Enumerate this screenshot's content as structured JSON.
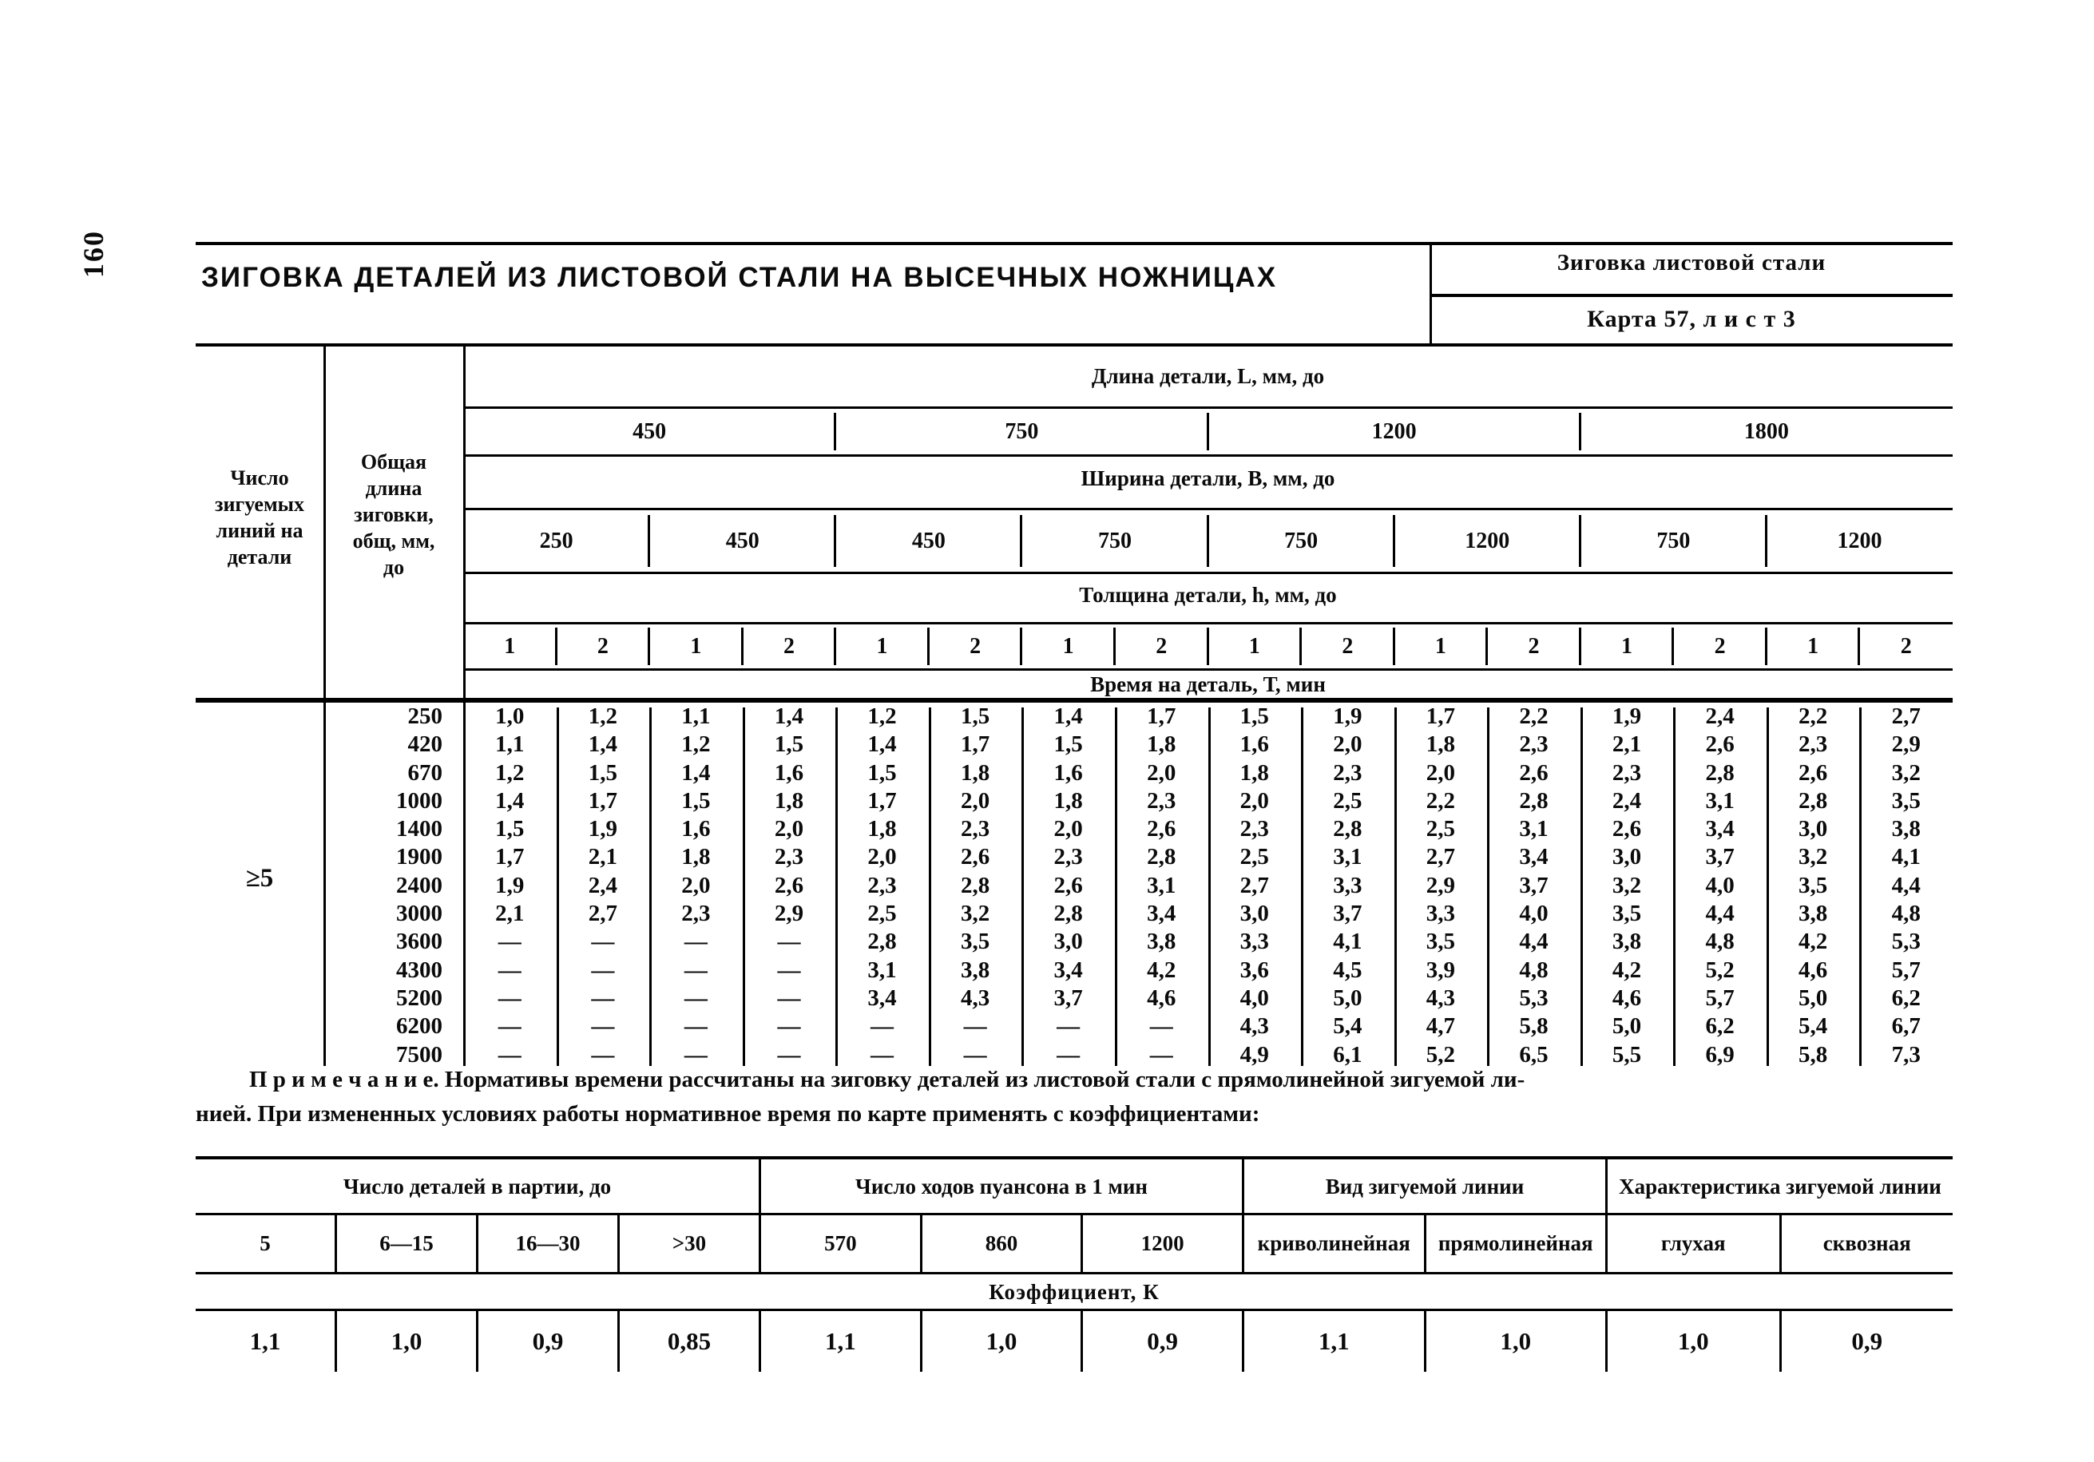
{
  "page": {
    "number": "160"
  },
  "header": {
    "title": "ЗИГОВКА ДЕТАЛЕЙ ИЗ ЛИСТОВОЙ СТАЛИ НА ВЫСЕЧНЫХ НОЖНИЦАХ",
    "topic": "Зиговка листовой стали",
    "card": "Карта 57, л и с т 3"
  },
  "main_table": {
    "stub1_label": "Число\nзигуемых\nлиний на\nдетали",
    "stub2_label": "Общая\nдлина\nзиговки,\nобщ, мм,\nдо",
    "stub_value": "≥5",
    "length_label": "Длина детали, L, мм, до",
    "length_values": [
      "450",
      "750",
      "1200",
      "1800"
    ],
    "width_label": "Ширина детали, В, мм, до",
    "width_values": [
      "250",
      "450",
      "450",
      "750",
      "750",
      "1200",
      "750",
      "1200"
    ],
    "thickness_label": "Толщина детали, h, мм, до",
    "thickness_values": [
      "1",
      "2",
      "1",
      "2",
      "1",
      "2",
      "1",
      "2",
      "1",
      "2",
      "1",
      "2",
      "1",
      "2",
      "1",
      "2"
    ],
    "time_label": "Время на деталь, Т, мин",
    "rows": [
      {
        "length": "250",
        "values": [
          "1,0",
          "1,2",
          "1,1",
          "1,4",
          "1,2",
          "1,5",
          "1,4",
          "1,7",
          "1,5",
          "1,9",
          "1,7",
          "2,2",
          "1,9",
          "2,4",
          "2,2",
          "2,7"
        ]
      },
      {
        "length": "420",
        "values": [
          "1,1",
          "1,4",
          "1,2",
          "1,5",
          "1,4",
          "1,7",
          "1,5",
          "1,8",
          "1,6",
          "2,0",
          "1,8",
          "2,3",
          "2,1",
          "2,6",
          "2,3",
          "2,9"
        ]
      },
      {
        "length": "670",
        "values": [
          "1,2",
          "1,5",
          "1,4",
          "1,6",
          "1,5",
          "1,8",
          "1,6",
          "2,0",
          "1,8",
          "2,3",
          "2,0",
          "2,6",
          "2,3",
          "2,8",
          "2,6",
          "3,2"
        ]
      },
      {
        "length": "1000",
        "values": [
          "1,4",
          "1,7",
          "1,5",
          "1,8",
          "1,7",
          "2,0",
          "1,8",
          "2,3",
          "2,0",
          "2,5",
          "2,2",
          "2,8",
          "2,4",
          "3,1",
          "2,8",
          "3,5"
        ]
      },
      {
        "length": "1400",
        "values": [
          "1,5",
          "1,9",
          "1,6",
          "2,0",
          "1,8",
          "2,3",
          "2,0",
          "2,6",
          "2,3",
          "2,8",
          "2,5",
          "3,1",
          "2,6",
          "3,4",
          "3,0",
          "3,8"
        ]
      },
      {
        "length": "1900",
        "values": [
          "1,7",
          "2,1",
          "1,8",
          "2,3",
          "2,0",
          "2,6",
          "2,3",
          "2,8",
          "2,5",
          "3,1",
          "2,7",
          "3,4",
          "3,0",
          "3,7",
          "3,2",
          "4,1"
        ]
      },
      {
        "length": "2400",
        "values": [
          "1,9",
          "2,4",
          "2,0",
          "2,6",
          "2,3",
          "2,8",
          "2,6",
          "3,1",
          "2,7",
          "3,3",
          "2,9",
          "3,7",
          "3,2",
          "4,0",
          "3,5",
          "4,4"
        ]
      },
      {
        "length": "3000",
        "values": [
          "2,1",
          "2,7",
          "2,3",
          "2,9",
          "2,5",
          "3,2",
          "2,8",
          "3,4",
          "3,0",
          "3,7",
          "3,3",
          "4,0",
          "3,5",
          "4,4",
          "3,8",
          "4,8"
        ]
      },
      {
        "length": "3600",
        "values": [
          "—",
          "—",
          "—",
          "—",
          "2,8",
          "3,5",
          "3,0",
          "3,8",
          "3,3",
          "4,1",
          "3,5",
          "4,4",
          "3,8",
          "4,8",
          "4,2",
          "5,3"
        ]
      },
      {
        "length": "4300",
        "values": [
          "—",
          "—",
          "—",
          "—",
          "3,1",
          "3,8",
          "3,4",
          "4,2",
          "3,6",
          "4,5",
          "3,9",
          "4,8",
          "4,2",
          "5,2",
          "4,6",
          "5,7"
        ]
      },
      {
        "length": "5200",
        "values": [
          "—",
          "—",
          "—",
          "—",
          "3,4",
          "4,3",
          "3,7",
          "4,6",
          "4,0",
          "5,0",
          "4,3",
          "5,3",
          "4,6",
          "5,7",
          "5,0",
          "6,2"
        ]
      },
      {
        "length": "6200",
        "values": [
          "—",
          "—",
          "—",
          "—",
          "—",
          "—",
          "—",
          "—",
          "4,3",
          "5,4",
          "4,7",
          "5,8",
          "5,0",
          "6,2",
          "5,4",
          "6,7"
        ]
      },
      {
        "length": "7500",
        "values": [
          "—",
          "—",
          "—",
          "—",
          "—",
          "—",
          "—",
          "—",
          "4,9",
          "6,1",
          "5,2",
          "6,5",
          "5,5",
          "6,9",
          "5,8",
          "7,3"
        ]
      }
    ]
  },
  "note": {
    "line1": "П р и м е ч а н и е.  Нормативы времени рассчитаны на зиговку деталей из листовой стали с прямолинейной зигуемой ли-",
    "line2": "нией. При измененных условиях работы нормативное время  по карте применять с коэффициентами:"
  },
  "coef_table": {
    "sections": [
      {
        "label": "Число деталей в партии, до",
        "cols": [
          "5",
          "6—15",
          "16—30",
          ">30"
        ],
        "coefs": [
          "1,1",
          "1,0",
          "0,9",
          "0,85"
        ]
      },
      {
        "label": "Число ходов пуансона в 1 мин",
        "cols": [
          "570",
          "860",
          "1200"
        ],
        "coefs": [
          "1,1",
          "1,0",
          "0,9"
        ]
      },
      {
        "label": "Вид зигуемой линии",
        "cols": [
          "криволинейная",
          "прямолинейная"
        ],
        "coefs": [
          "1,1",
          "1,0"
        ]
      },
      {
        "label": "Характеристика зигуемой линии",
        "cols": [
          "глухая",
          "сквозная"
        ],
        "coefs": [
          "1,0",
          "0,9"
        ]
      }
    ],
    "coef_label": "Коэффициент, К"
  }
}
